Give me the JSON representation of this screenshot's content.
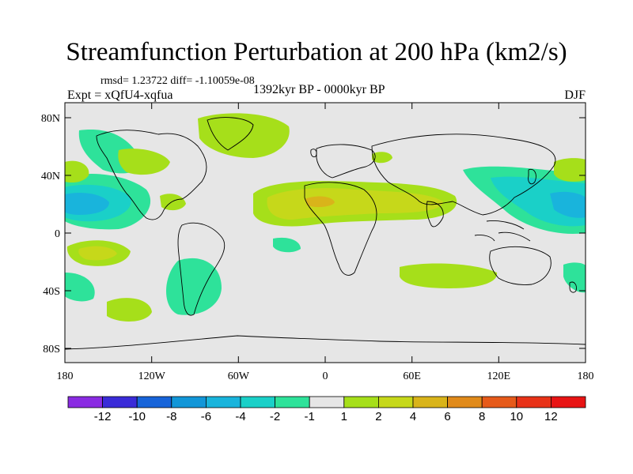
{
  "title": "Streamfunction Perturbation at 200 hPa (km2/s)",
  "stats_line": "rmsd= 1.23722 diff= -1.10059e-08",
  "experiment": "Expt = xQfU4-xqfua",
  "period": "1392kyr BP - 0000kyr BP",
  "season": "DJF",
  "lat_ticks": [
    "80N",
    "40N",
    "0",
    "40S",
    "80S"
  ],
  "lon_ticks": [
    "180",
    "120W",
    "60W",
    "0",
    "60E",
    "120E",
    "180"
  ],
  "colorbar": {
    "labels": [
      "-12",
      "-10",
      "-8",
      "-6",
      "-4",
      "-2",
      "-1",
      "1",
      "2",
      "4",
      "6",
      "8",
      "10",
      "12"
    ],
    "colors": [
      "#8a2be2",
      "#3a2bd8",
      "#1764d9",
      "#1296d8",
      "#19b4dc",
      "#1ad0c8",
      "#2ee29a",
      "#e6e6e6",
      "#a6df1a",
      "#c6d81a",
      "#d9b41a",
      "#e08a1a",
      "#e65a1a",
      "#e83218",
      "#e81414"
    ]
  }
}
